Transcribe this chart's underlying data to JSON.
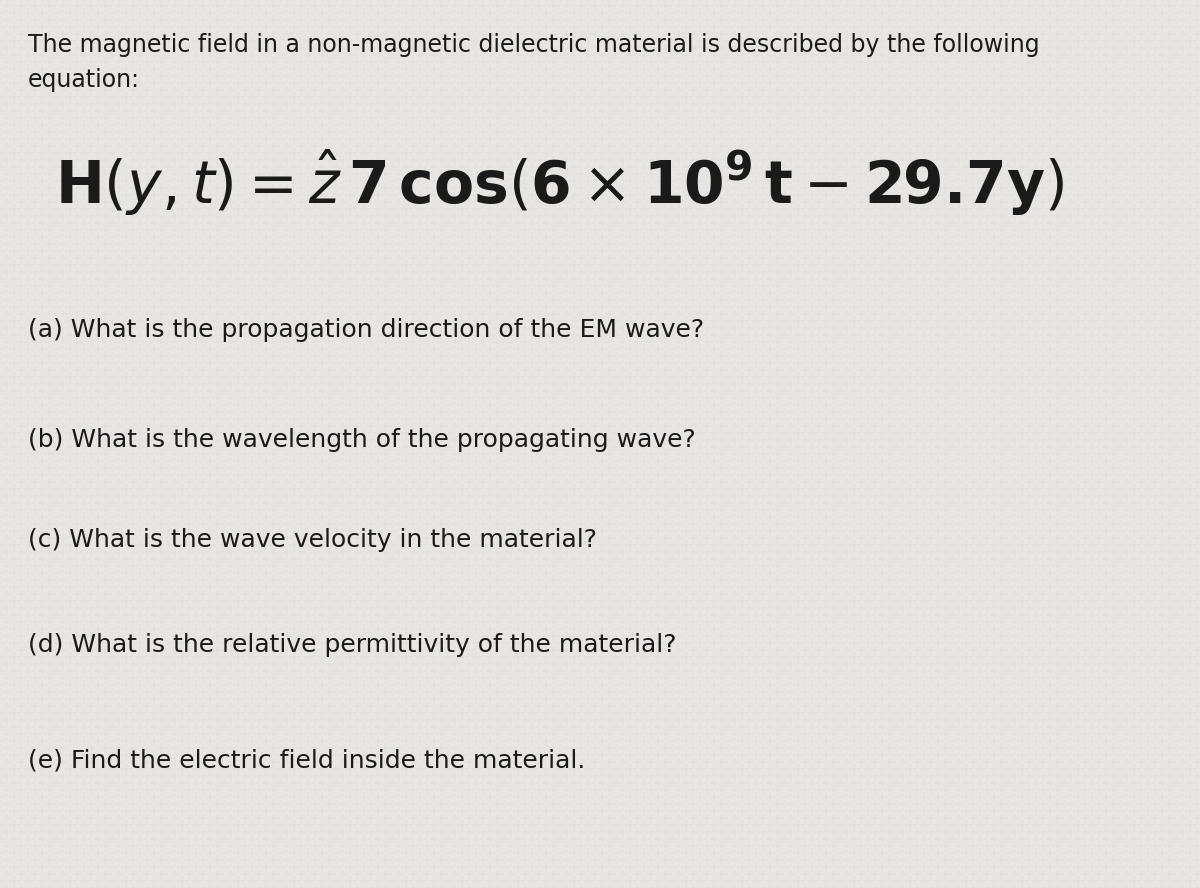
{
  "background_color": "#e8e6e2",
  "text_color": "#1a1a1a",
  "intro_line1": "The magnetic field in a non-magnetic dielectric material is described by the following",
  "intro_line2": "equation:",
  "questions": [
    "(a) What is the propagation direction of the EM wave?",
    "(b) What is the wavelength of the propagating wave?",
    "(c) What is the wave velocity in the material?",
    "(d) What is the relative permittivity of the material?",
    "(e) Find the electric field inside the material."
  ],
  "intro_fontsize": 17,
  "equation_fontsize": 42,
  "question_fontsize": 18,
  "fig_width": 12.0,
  "fig_height": 8.88,
  "dpi": 100
}
